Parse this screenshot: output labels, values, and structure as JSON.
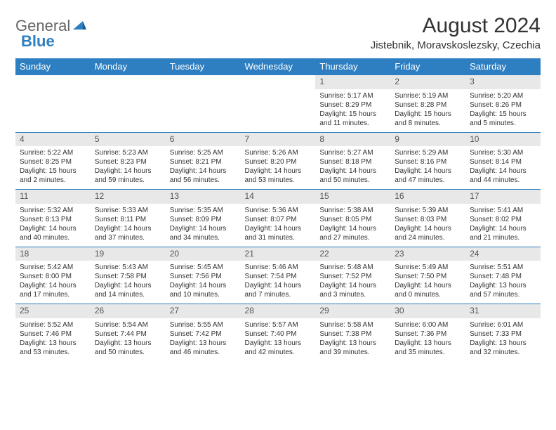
{
  "logo": {
    "part1": "General",
    "part2": "Blue"
  },
  "title": "August 2024",
  "location": "Jistebnik, Moravskoslezsky, Czechia",
  "colors": {
    "header_bg": "#2d7fc1",
    "header_fg": "#ffffff",
    "daynum_bg": "#e8e8e8",
    "row_border": "#2d7fc1",
    "text": "#333333"
  },
  "font": {
    "title_size": 30,
    "sub_size": 15,
    "header_size": 13,
    "daynum_size": 12,
    "cell_size": 10
  },
  "columns": [
    "Sunday",
    "Monday",
    "Tuesday",
    "Wednesday",
    "Thursday",
    "Friday",
    "Saturday"
  ],
  "weeks": [
    [
      null,
      null,
      null,
      null,
      {
        "n": 1,
        "sr": "5:17 AM",
        "ss": "8:29 PM",
        "dl": "15 hours and 11 minutes."
      },
      {
        "n": 2,
        "sr": "5:19 AM",
        "ss": "8:28 PM",
        "dl": "15 hours and 8 minutes."
      },
      {
        "n": 3,
        "sr": "5:20 AM",
        "ss": "8:26 PM",
        "dl": "15 hours and 5 minutes."
      }
    ],
    [
      {
        "n": 4,
        "sr": "5:22 AM",
        "ss": "8:25 PM",
        "dl": "15 hours and 2 minutes."
      },
      {
        "n": 5,
        "sr": "5:23 AM",
        "ss": "8:23 PM",
        "dl": "14 hours and 59 minutes."
      },
      {
        "n": 6,
        "sr": "5:25 AM",
        "ss": "8:21 PM",
        "dl": "14 hours and 56 minutes."
      },
      {
        "n": 7,
        "sr": "5:26 AM",
        "ss": "8:20 PM",
        "dl": "14 hours and 53 minutes."
      },
      {
        "n": 8,
        "sr": "5:27 AM",
        "ss": "8:18 PM",
        "dl": "14 hours and 50 minutes."
      },
      {
        "n": 9,
        "sr": "5:29 AM",
        "ss": "8:16 PM",
        "dl": "14 hours and 47 minutes."
      },
      {
        "n": 10,
        "sr": "5:30 AM",
        "ss": "8:14 PM",
        "dl": "14 hours and 44 minutes."
      }
    ],
    [
      {
        "n": 11,
        "sr": "5:32 AM",
        "ss": "8:13 PM",
        "dl": "14 hours and 40 minutes."
      },
      {
        "n": 12,
        "sr": "5:33 AM",
        "ss": "8:11 PM",
        "dl": "14 hours and 37 minutes."
      },
      {
        "n": 13,
        "sr": "5:35 AM",
        "ss": "8:09 PM",
        "dl": "14 hours and 34 minutes."
      },
      {
        "n": 14,
        "sr": "5:36 AM",
        "ss": "8:07 PM",
        "dl": "14 hours and 31 minutes."
      },
      {
        "n": 15,
        "sr": "5:38 AM",
        "ss": "8:05 PM",
        "dl": "14 hours and 27 minutes."
      },
      {
        "n": 16,
        "sr": "5:39 AM",
        "ss": "8:03 PM",
        "dl": "14 hours and 24 minutes."
      },
      {
        "n": 17,
        "sr": "5:41 AM",
        "ss": "8:02 PM",
        "dl": "14 hours and 21 minutes."
      }
    ],
    [
      {
        "n": 18,
        "sr": "5:42 AM",
        "ss": "8:00 PM",
        "dl": "14 hours and 17 minutes."
      },
      {
        "n": 19,
        "sr": "5:43 AM",
        "ss": "7:58 PM",
        "dl": "14 hours and 14 minutes."
      },
      {
        "n": 20,
        "sr": "5:45 AM",
        "ss": "7:56 PM",
        "dl": "14 hours and 10 minutes."
      },
      {
        "n": 21,
        "sr": "5:46 AM",
        "ss": "7:54 PM",
        "dl": "14 hours and 7 minutes."
      },
      {
        "n": 22,
        "sr": "5:48 AM",
        "ss": "7:52 PM",
        "dl": "14 hours and 3 minutes."
      },
      {
        "n": 23,
        "sr": "5:49 AM",
        "ss": "7:50 PM",
        "dl": "14 hours and 0 minutes."
      },
      {
        "n": 24,
        "sr": "5:51 AM",
        "ss": "7:48 PM",
        "dl": "13 hours and 57 minutes."
      }
    ],
    [
      {
        "n": 25,
        "sr": "5:52 AM",
        "ss": "7:46 PM",
        "dl": "13 hours and 53 minutes."
      },
      {
        "n": 26,
        "sr": "5:54 AM",
        "ss": "7:44 PM",
        "dl": "13 hours and 50 minutes."
      },
      {
        "n": 27,
        "sr": "5:55 AM",
        "ss": "7:42 PM",
        "dl": "13 hours and 46 minutes."
      },
      {
        "n": 28,
        "sr": "5:57 AM",
        "ss": "7:40 PM",
        "dl": "13 hours and 42 minutes."
      },
      {
        "n": 29,
        "sr": "5:58 AM",
        "ss": "7:38 PM",
        "dl": "13 hours and 39 minutes."
      },
      {
        "n": 30,
        "sr": "6:00 AM",
        "ss": "7:36 PM",
        "dl": "13 hours and 35 minutes."
      },
      {
        "n": 31,
        "sr": "6:01 AM",
        "ss": "7:33 PM",
        "dl": "13 hours and 32 minutes."
      }
    ]
  ],
  "labels": {
    "sunrise": "Sunrise:",
    "sunset": "Sunset:",
    "daylight": "Daylight:"
  }
}
